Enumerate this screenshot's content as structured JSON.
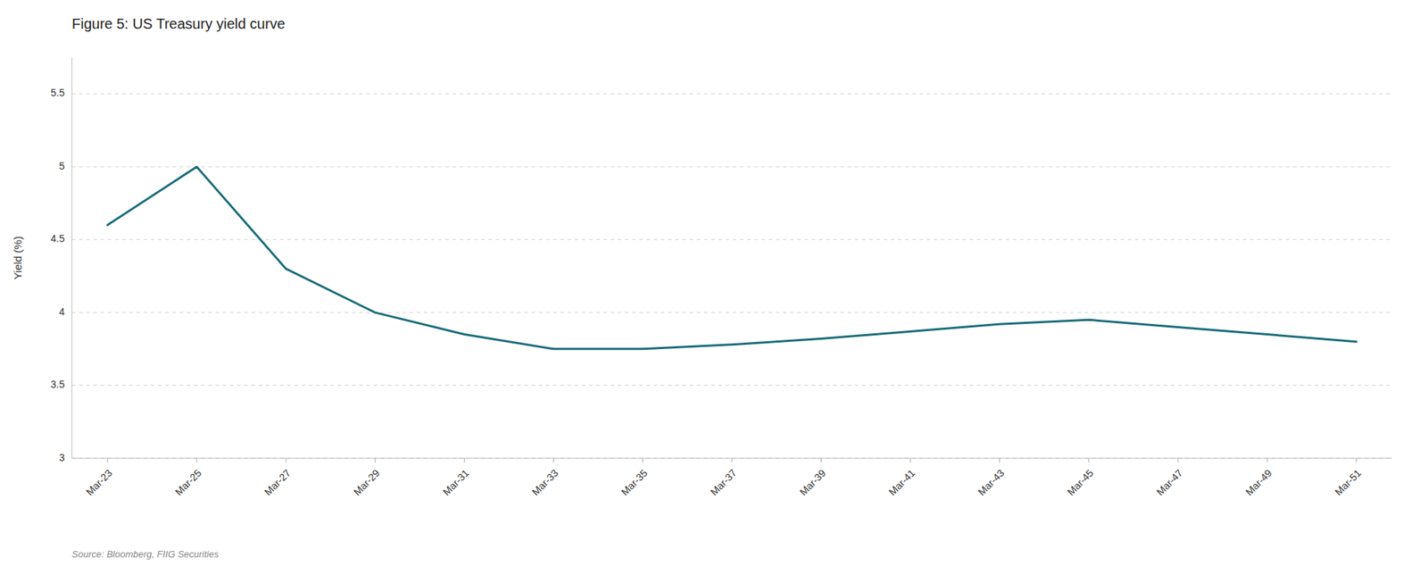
{
  "chart_data": {
    "type": "line",
    "title": "Figure 5: US Treasury yield curve",
    "ylabel": "Yield (%)",
    "source": "Source: Bloomberg, FIIG Securities",
    "categories": [
      "Mar-23",
      "Mar-25",
      "Mar-27",
      "Mar-29",
      "Mar-31",
      "Mar-33",
      "Mar-35",
      "Mar-37",
      "Mar-39",
      "Mar-41",
      "Mar-43",
      "Mar-45",
      "Mar-47",
      "Mar-49",
      "Mar-51"
    ],
    "values": [
      4.6,
      5.0,
      4.3,
      4.0,
      3.85,
      3.75,
      3.75,
      3.78,
      3.82,
      3.87,
      3.92,
      3.95,
      3.9,
      3.85,
      3.8
    ],
    "color": "#1a6b7a",
    "ylim": [
      3.0,
      5.75
    ],
    "yticks": [
      3,
      3.5,
      4,
      4.5,
      5,
      5.5
    ],
    "grid": true
  }
}
